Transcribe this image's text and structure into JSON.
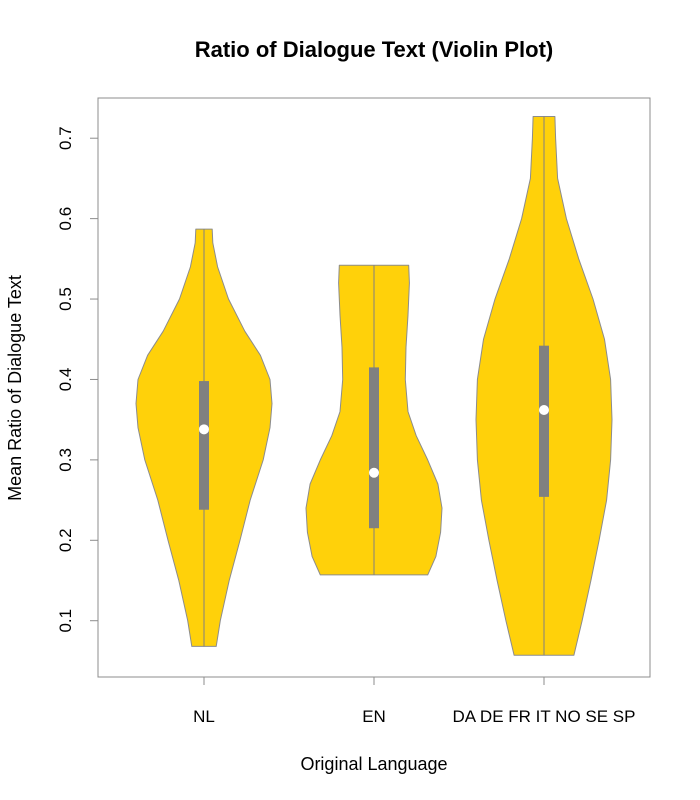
{
  "chart_data": {
    "type": "violin",
    "title": "Ratio of Dialogue Text (Violin Plot)",
    "xlabel": "Original Language",
    "ylabel": "Mean Ratio of Dialogue Text",
    "ylim": [
      0.03,
      0.75
    ],
    "yticks": [
      0.1,
      0.2,
      0.3,
      0.4,
      0.5,
      0.6,
      0.7
    ],
    "ytick_labels": [
      "0.1",
      "0.2",
      "0.3",
      "0.4",
      "0.5",
      "0.6",
      "0.7"
    ],
    "grid": false,
    "legend": "none",
    "colors": {
      "fill": "#FFD10A",
      "outline": "#8C8C8C",
      "box": "#808080",
      "median": "#FFFFFF"
    },
    "categories": [
      "NL",
      "EN",
      "DA DE FR IT NO SE SP"
    ],
    "violins": [
      {
        "category": "NL",
        "min": 0.068,
        "q1": 0.238,
        "median": 0.338,
        "q3": 0.398,
        "max": 0.587,
        "density": [
          [
            0.068,
            0.18
          ],
          [
            0.1,
            0.24
          ],
          [
            0.15,
            0.37
          ],
          [
            0.2,
            0.53
          ],
          [
            0.25,
            0.68
          ],
          [
            0.3,
            0.87
          ],
          [
            0.34,
            0.97
          ],
          [
            0.37,
            1.0
          ],
          [
            0.4,
            0.97
          ],
          [
            0.43,
            0.83
          ],
          [
            0.46,
            0.6
          ],
          [
            0.5,
            0.36
          ],
          [
            0.54,
            0.2
          ],
          [
            0.57,
            0.13
          ],
          [
            0.587,
            0.12
          ]
        ]
      },
      {
        "category": "EN",
        "min": 0.157,
        "q1": 0.215,
        "median": 0.284,
        "q3": 0.415,
        "max": 0.542,
        "density": [
          [
            0.157,
            0.79
          ],
          [
            0.18,
            0.91
          ],
          [
            0.21,
            0.98
          ],
          [
            0.24,
            1.0
          ],
          [
            0.27,
            0.94
          ],
          [
            0.3,
            0.79
          ],
          [
            0.33,
            0.62
          ],
          [
            0.36,
            0.5
          ],
          [
            0.4,
            0.46
          ],
          [
            0.44,
            0.47
          ],
          [
            0.48,
            0.5
          ],
          [
            0.52,
            0.52
          ],
          [
            0.542,
            0.51
          ]
        ]
      },
      {
        "category": "DA DE FR IT NO SE SP",
        "min": 0.057,
        "q1": 0.254,
        "median": 0.362,
        "q3": 0.442,
        "max": 0.727,
        "density": [
          [
            0.057,
            0.44
          ],
          [
            0.1,
            0.56
          ],
          [
            0.15,
            0.69
          ],
          [
            0.2,
            0.81
          ],
          [
            0.25,
            0.92
          ],
          [
            0.3,
            0.98
          ],
          [
            0.35,
            1.0
          ],
          [
            0.4,
            0.98
          ],
          [
            0.45,
            0.89
          ],
          [
            0.5,
            0.72
          ],
          [
            0.55,
            0.51
          ],
          [
            0.6,
            0.33
          ],
          [
            0.65,
            0.2
          ],
          [
            0.7,
            0.17
          ],
          [
            0.727,
            0.16
          ]
        ]
      }
    ]
  }
}
